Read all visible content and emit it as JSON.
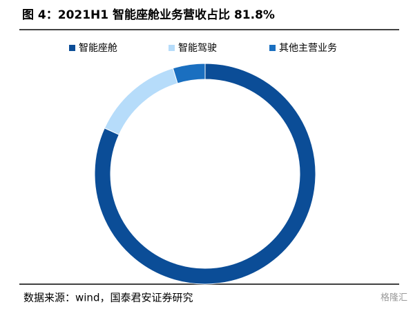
{
  "chart_data": {
    "type": "donut",
    "title": "图 4：2021H1 智能座舱业务营收占比 81.8%",
    "categories": [
      "智能座舱",
      "智能驾驶",
      "其他主营业务"
    ],
    "values": [
      81.8,
      13.5,
      4.7
    ],
    "colors": [
      "#0b4d97",
      "#b6dcfa",
      "#1a6fc0"
    ],
    "source": "数据来源：wind，国泰君安证券研究",
    "watermark": "格隆汇"
  }
}
